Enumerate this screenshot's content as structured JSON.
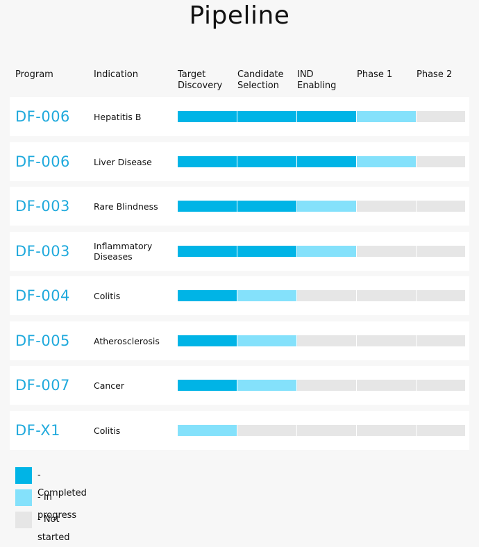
{
  "title": "Pipeline",
  "colors": {
    "completed": "#00b4e6",
    "in_progress": "#84e1fb",
    "not_started": "#e6e6e6",
    "program_text": "#1fa9dc"
  },
  "chart_data": {
    "type": "table",
    "title": "Pipeline",
    "columns": [
      "Program",
      "Indication",
      "Target Discovery",
      "Candidate Selection",
      "IND Enabling",
      "Phase 1",
      "Phase 2"
    ],
    "stages": [
      "Target Discovery",
      "Candidate Selection",
      "IND Enabling",
      "Phase 1",
      "Phase 2"
    ],
    "status_levels": [
      "completed",
      "in_progress",
      "not_started"
    ],
    "rows": [
      {
        "program": "DF-006",
        "indication": "Hepatitis B",
        "status": [
          "completed",
          "completed",
          "completed",
          "in_progress",
          "not_started"
        ]
      },
      {
        "program": "DF-006",
        "indication": "Liver Disease",
        "status": [
          "completed",
          "completed",
          "completed",
          "in_progress",
          "not_started"
        ]
      },
      {
        "program": "DF-003",
        "indication": "Rare Blindness",
        "status": [
          "completed",
          "completed",
          "in_progress",
          "not_started",
          "not_started"
        ]
      },
      {
        "program": "DF-003",
        "indication": "Inflammatory Diseases",
        "status": [
          "completed",
          "completed",
          "in_progress",
          "not_started",
          "not_started"
        ]
      },
      {
        "program": "DF-004",
        "indication": "Colitis",
        "status": [
          "completed",
          "in_progress",
          "not_started",
          "not_started",
          "not_started"
        ]
      },
      {
        "program": "DF-005",
        "indication": "Atherosclerosis",
        "status": [
          "completed",
          "in_progress",
          "not_started",
          "not_started",
          "not_started"
        ]
      },
      {
        "program": "DF-007",
        "indication": "Cancer",
        "status": [
          "completed",
          "in_progress",
          "not_started",
          "not_started",
          "not_started"
        ]
      },
      {
        "program": "DF-X1",
        "indication": "Colitis",
        "status": [
          "in_progress",
          "not_started",
          "not_started",
          "not_started",
          "not_started"
        ]
      }
    ],
    "legend": [
      {
        "key": "completed",
        "label": "- Completed"
      },
      {
        "key": "in_progress",
        "label": "- In progress"
      },
      {
        "key": "not_started",
        "label": "- Not started"
      }
    ]
  }
}
